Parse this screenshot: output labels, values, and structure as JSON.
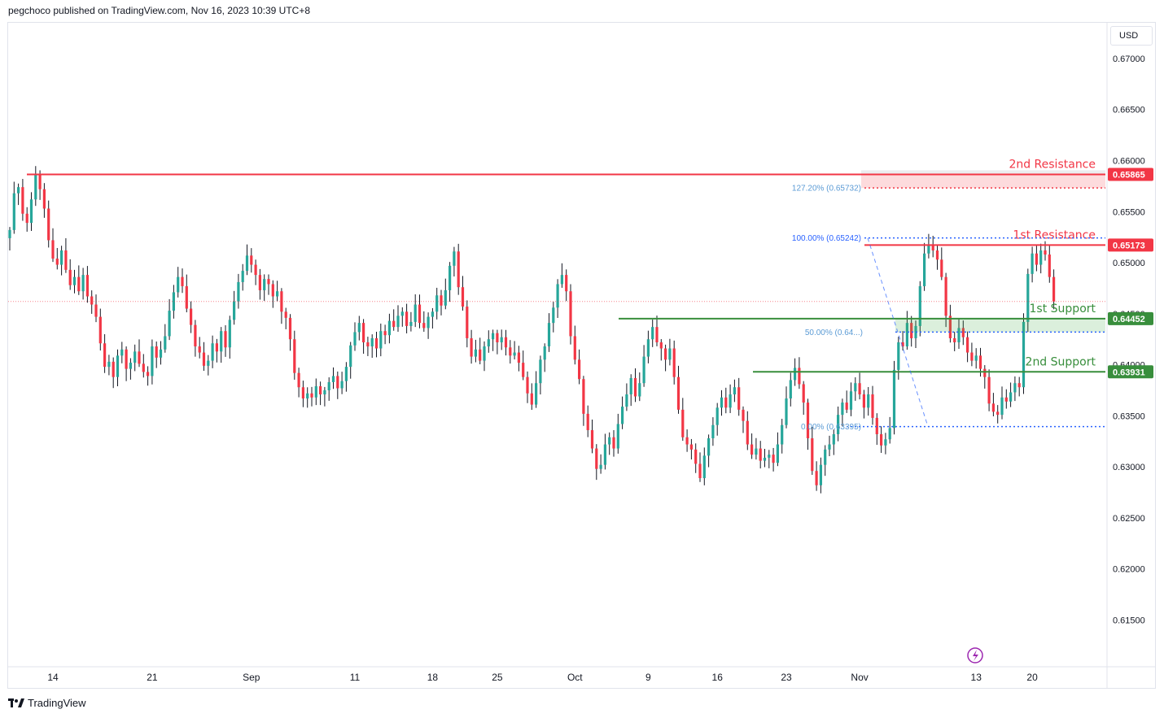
{
  "header": {
    "text": "pegchoco published on TradingView.com, Nov 16, 2023 10:39 UTC+8"
  },
  "currency": "USD",
  "footer": {
    "brand": "TradingView"
  },
  "colors": {
    "up": "#26a69a",
    "down": "#f23645",
    "resistance": "#f23645",
    "support": "#388e3c",
    "fib": "#2962ff"
  },
  "chart_data": {
    "type": "candlestick",
    "y_ticks": [
      "0.67000",
      "0.66500",
      "0.66000",
      "0.65500",
      "0.65000",
      "0.64500",
      "0.64000",
      "0.63500",
      "0.63000",
      "0.62500",
      "0.62000",
      "0.61500"
    ],
    "x_ticks": [
      "14",
      "21",
      "Sep",
      "11",
      "18",
      "25",
      "Oct",
      "9",
      "16",
      "23",
      "Nov",
      "13",
      "20"
    ],
    "ylim": [
      0.6105,
      0.6735
    ],
    "levels": [
      {
        "name": "2nd Resistance",
        "price": 0.65865,
        "label": "0.65865",
        "kind": "resistance"
      },
      {
        "name": "1st Resistance",
        "price": 0.65173,
        "label": "0.65173",
        "kind": "resistance"
      },
      {
        "name": "1st Support",
        "price": 0.64452,
        "label": "0.64452",
        "kind": "support"
      },
      {
        "name": "2nd Support",
        "price": 0.63931,
        "label": "0.63931",
        "kind": "support"
      }
    ],
    "fib_labels": [
      "127.20% (0.65732)",
      "100.00% (0.65242)",
      "50.00% (0.64...)",
      "0.00% (0.63395)"
    ],
    "fib_prices": [
      0.65732,
      0.65242,
      0.6432,
      0.63395
    ],
    "closes": [
      0.6532,
      0.6568,
      0.6574,
      0.6548,
      0.6539,
      0.6562,
      0.6586,
      0.6572,
      0.6553,
      0.6522,
      0.6504,
      0.6498,
      0.6512,
      0.6493,
      0.6478,
      0.6486,
      0.6472,
      0.6488,
      0.6467,
      0.6459,
      0.6447,
      0.6421,
      0.6398,
      0.6403,
      0.6388,
      0.6409,
      0.6415,
      0.6396,
      0.6402,
      0.6413,
      0.6401,
      0.6393,
      0.6389,
      0.6418,
      0.6407,
      0.6415,
      0.6428,
      0.6453,
      0.6471,
      0.6486,
      0.6477,
      0.6455,
      0.6439,
      0.6418,
      0.6412,
      0.6399,
      0.6404,
      0.6421,
      0.6413,
      0.6433,
      0.6417,
      0.6444,
      0.6462,
      0.6481,
      0.6492,
      0.6507,
      0.6498,
      0.6488,
      0.6473,
      0.6484,
      0.6479,
      0.6467,
      0.6472,
      0.6452,
      0.6446,
      0.6425,
      0.6392,
      0.6378,
      0.6367,
      0.6372,
      0.6368,
      0.6379,
      0.6371,
      0.6375,
      0.6383,
      0.6389,
      0.6377,
      0.6384,
      0.6398,
      0.6419,
      0.6432,
      0.6441,
      0.6422,
      0.6418,
      0.6426,
      0.6416,
      0.6433,
      0.6429,
      0.6443,
      0.6437,
      0.6448,
      0.6452,
      0.6438,
      0.6442,
      0.6459,
      0.6441,
      0.6436,
      0.6447,
      0.6452,
      0.6468,
      0.6458,
      0.6473,
      0.6497,
      0.6511,
      0.6476,
      0.6457,
      0.6426,
      0.6408,
      0.6415,
      0.6404,
      0.6418,
      0.6425,
      0.6431,
      0.6422,
      0.6427,
      0.6417,
      0.6409,
      0.6412,
      0.6402,
      0.6388,
      0.6372,
      0.6361,
      0.6382,
      0.6405,
      0.6418,
      0.6441,
      0.6456,
      0.6479,
      0.6488,
      0.6472,
      0.6428,
      0.6405,
      0.6386,
      0.6352,
      0.6336,
      0.6318,
      0.6298,
      0.6302,
      0.6322,
      0.6329,
      0.6318,
      0.6342,
      0.6359,
      0.6371,
      0.6387,
      0.6369,
      0.6382,
      0.6408,
      0.6425,
      0.6437,
      0.6422,
      0.6416,
      0.6405,
      0.6416,
      0.6388,
      0.6356,
      0.6329,
      0.6322,
      0.6317,
      0.6303,
      0.6289,
      0.6311,
      0.6328,
      0.6341,
      0.6358,
      0.6368,
      0.6358,
      0.6371,
      0.6378,
      0.6356,
      0.6345,
      0.6322,
      0.6312,
      0.6318,
      0.6306,
      0.6309,
      0.6312,
      0.6304,
      0.6322,
      0.6341,
      0.6367,
      0.6385,
      0.6397,
      0.6381,
      0.6363,
      0.6328,
      0.6296,
      0.6282,
      0.6302,
      0.6317,
      0.6322,
      0.6332,
      0.6351,
      0.6363,
      0.6356,
      0.6374,
      0.6382,
      0.6371,
      0.6358,
      0.6371,
      0.6348,
      0.6332,
      0.6321,
      0.6327,
      0.6338,
      0.6395,
      0.6422,
      0.6418,
      0.6441,
      0.6426,
      0.6438,
      0.6477,
      0.6509,
      0.6518,
      0.6512,
      0.6503,
      0.6486,
      0.6448,
      0.6426,
      0.6422,
      0.6436,
      0.6427,
      0.6412,
      0.6404,
      0.6409,
      0.6396,
      0.6388,
      0.6362,
      0.6354,
      0.6351,
      0.6368,
      0.6364,
      0.6373,
      0.6382,
      0.6378,
      0.6442,
      0.6489,
      0.6509,
      0.6498,
      0.6512,
      0.6508,
      0.6486,
      0.6462
    ],
    "x_ticks_idx": [
      10,
      33,
      56,
      80,
      98,
      113,
      131,
      148,
      164,
      180,
      197,
      224,
      237
    ]
  }
}
